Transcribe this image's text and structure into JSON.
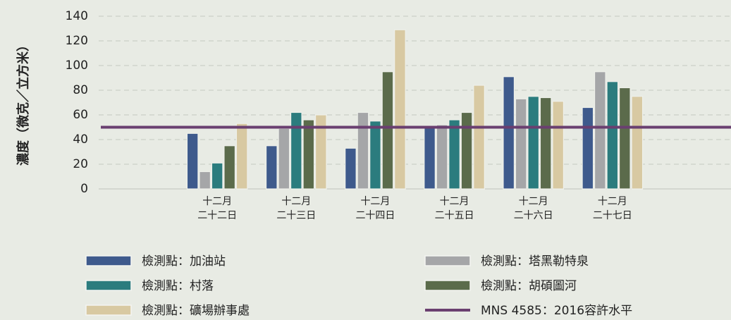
{
  "chart_data": {
    "type": "bar",
    "y_label": "濃度（微克／立方米）",
    "categories": [
      null,
      "十二月\n二十二日",
      "十二月\n二十三日",
      "十二月\n二十四日",
      "十二月\n二十五日",
      "十二月\n二十六日",
      "十二月\n二十七日",
      null
    ],
    "series": [
      {
        "name": "檢測點：加油站",
        "color": "#3e5a8c",
        "values": [
          null,
          45,
          35,
          33,
          51,
          91,
          66,
          null
        ]
      },
      {
        "name": "檢測點：塔黑勒特泉",
        "color": "#a5a6a8",
        "values": [
          null,
          14,
          49,
          62,
          52,
          73,
          95,
          null
        ]
      },
      {
        "name": "檢測點：村落",
        "color": "#2b7c7e",
        "values": [
          null,
          21,
          62,
          55,
          56,
          75,
          87,
          null
        ]
      },
      {
        "name": "檢測點：胡碩圖河",
        "color": "#5b6b4b",
        "values": [
          null,
          35,
          56,
          95,
          62,
          74,
          82,
          null
        ]
      },
      {
        "name": "檢測點：礦場辦事處",
        "color": "#d8c9a2",
        "values": [
          null,
          53,
          60,
          129,
          84,
          71,
          75,
          null
        ]
      }
    ],
    "reference_line": {
      "name": "MNS 4585：2016容許水平",
      "value": 50,
      "color": "#6a3f70"
    },
    "ylim": [
      0,
      140
    ],
    "yticks": [
      0,
      20,
      40,
      60,
      80,
      100,
      120,
      140
    ],
    "grid": true
  }
}
